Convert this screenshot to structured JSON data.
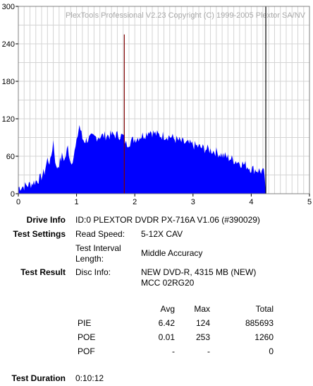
{
  "chart_data": {
    "type": "area",
    "watermark": "PlexTools Professional V2.23 Copyright (C) 1999-2005 Plextor SA/NV",
    "x_ticks": [
      "0",
      "1",
      "2",
      "3",
      "4",
      "5"
    ],
    "y_ticks": [
      "0",
      "60",
      "120",
      "180",
      "240",
      "300"
    ],
    "xlim": [
      0,
      5
    ],
    "ylim": [
      0,
      300
    ],
    "grid": true,
    "series": [
      {
        "color": "#0000ff",
        "x": [
          0.0,
          0.1,
          0.2,
          0.3,
          0.38,
          0.45,
          0.5,
          0.55,
          0.6,
          0.65,
          0.7,
          0.75,
          0.8,
          0.85,
          0.9,
          0.95,
          1.0,
          1.02,
          1.05,
          1.1,
          1.15,
          1.2,
          1.3,
          1.4,
          1.5,
          1.6,
          1.7,
          1.8,
          1.85,
          1.9,
          2.0,
          2.1,
          2.2,
          2.25,
          2.3,
          2.4,
          2.5,
          2.6,
          2.7,
          2.8,
          2.9,
          3.0,
          3.1,
          3.2,
          3.3,
          3.4,
          3.5,
          3.6,
          3.7,
          3.8,
          3.9,
          4.0,
          4.1,
          4.2,
          4.23,
          4.25
        ],
        "y": [
          10,
          12,
          15,
          20,
          25,
          35,
          55,
          50,
          85,
          40,
          48,
          60,
          55,
          75,
          50,
          60,
          80,
          95,
          110,
          88,
          85,
          88,
          90,
          92,
          93,
          94,
          94,
          92,
          80,
          82,
          88,
          92,
          96,
          102,
          98,
          94,
          93,
          92,
          87,
          83,
          80,
          78,
          75,
          72,
          70,
          67,
          62,
          58,
          54,
          50,
          46,
          40,
          38,
          35,
          30,
          0
        ]
      }
    ],
    "markers": [
      {
        "x": 1.82,
        "y": 255,
        "color": "#800000"
      },
      {
        "x": 4.25,
        "y": 300,
        "color": "#000000"
      }
    ]
  },
  "report": {
    "drive_info": {
      "label": "Drive Info",
      "value": "ID:0 PLEXTOR DVDR PX-716A V1.06 (#390029)"
    },
    "test_settings": {
      "label": "Test Settings",
      "read_speed_key": "Read Speed:",
      "read_speed_value": "5-12X CAV",
      "interval_key_line1": "Test Interval",
      "interval_key_line2": "Length:",
      "interval_value": "Middle Accuracy"
    },
    "test_result": {
      "label": "Test Result",
      "disc_info_key": "Disc Info:",
      "disc_info_line1": "NEW DVD-R, 4315 MB (NEW)",
      "disc_info_line2": "MCC 02RG20"
    },
    "stats": {
      "headers": {
        "avg": "Avg",
        "max": "Max",
        "total": "Total"
      },
      "rows": [
        {
          "name": "PIE",
          "avg": "6.42",
          "max": "124",
          "total": "885693"
        },
        {
          "name": "POE",
          "avg": "0.01",
          "max": "253",
          "total": "1260"
        },
        {
          "name": "POF",
          "avg": "-",
          "max": "-",
          "total": "0"
        }
      ]
    },
    "duration": {
      "label": "Test Duration",
      "value": "0:10:12"
    }
  }
}
